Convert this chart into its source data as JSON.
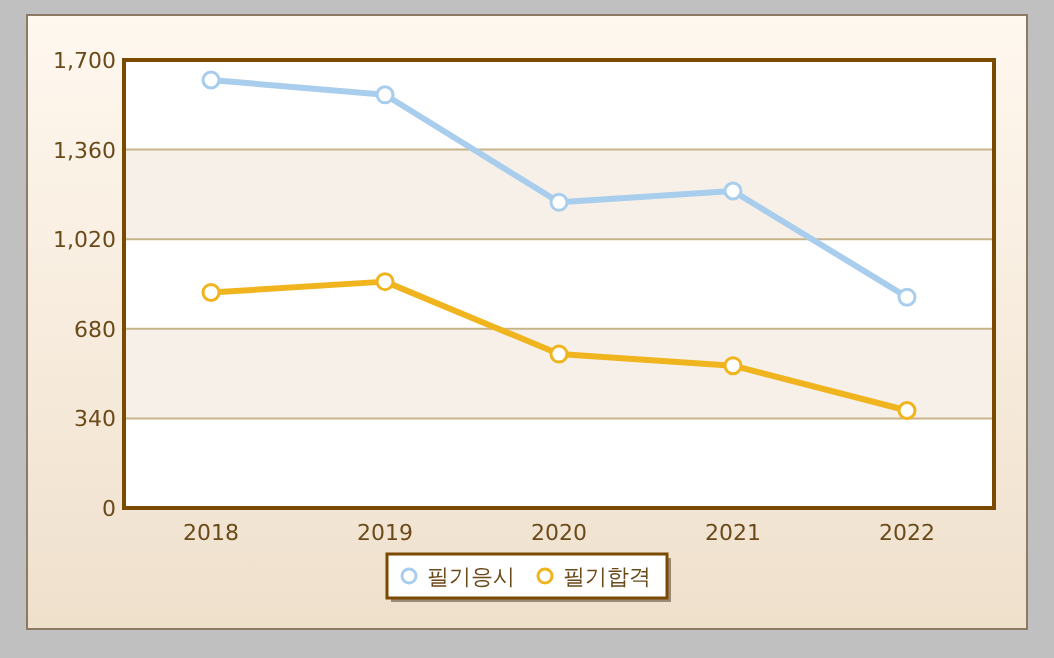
{
  "chart_data": {
    "type": "line",
    "categories": [
      "2018",
      "2019",
      "2020",
      "2021",
      "2022"
    ],
    "series": [
      {
        "name": "필기응시",
        "color": "#a9cdec",
        "values": [
          1624,
          1568,
          1160,
          1203,
          800
        ]
      },
      {
        "name": "필기합격",
        "color": "#f0b41e",
        "values": [
          818,
          859,
          584,
          540,
          370
        ]
      }
    ],
    "ylim": [
      0,
      1700
    ],
    "yticks": [
      0,
      {
        "value": 340,
        "label": "340"
      },
      {
        "value": 680,
        "label": "680"
      },
      {
        "value": 1020,
        "label": "1,020"
      },
      {
        "value": 1360,
        "label": "1,360"
      },
      {
        "value": 1700,
        "label": "1,700"
      }
    ],
    "grid": "y",
    "legend": "bottom",
    "marker": "circle",
    "line_style": "solid"
  }
}
